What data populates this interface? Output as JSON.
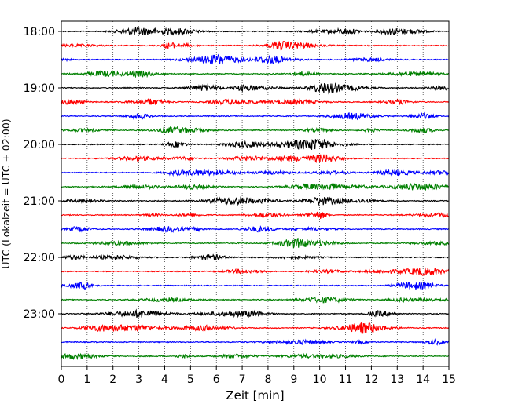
{
  "chart_data": {
    "type": "line",
    "title": "",
    "xlabel": "Zeit  [min]",
    "ylabel": "UTC (Lokalzeit = UTC + 02:00)",
    "xlim": [
      0,
      15
    ],
    "x_ticks": [
      "0",
      "1",
      "2",
      "3",
      "4",
      "5",
      "6",
      "7",
      "8",
      "9",
      "10",
      "11",
      "12",
      "13",
      "14",
      "15"
    ],
    "y_ticks": [
      "18:00",
      "19:00",
      "20:00",
      "21:00",
      "22:00",
      "23:00"
    ],
    "trace_start_times": [
      "18:00",
      "18:15",
      "18:30",
      "18:45",
      "19:00",
      "19:15",
      "19:30",
      "19:45",
      "20:00",
      "20:15",
      "20:30",
      "20:45",
      "21:00",
      "21:15",
      "21:30",
      "21:45",
      "22:00",
      "22:15",
      "22:30",
      "22:45",
      "23:00",
      "23:15",
      "23:30",
      "23:45"
    ],
    "trace_colors": [
      "#000000",
      "#ff0000",
      "#0000ff",
      "#008000"
    ],
    "grid": "vertical dotted lines at each minute",
    "legend": "none"
  }
}
